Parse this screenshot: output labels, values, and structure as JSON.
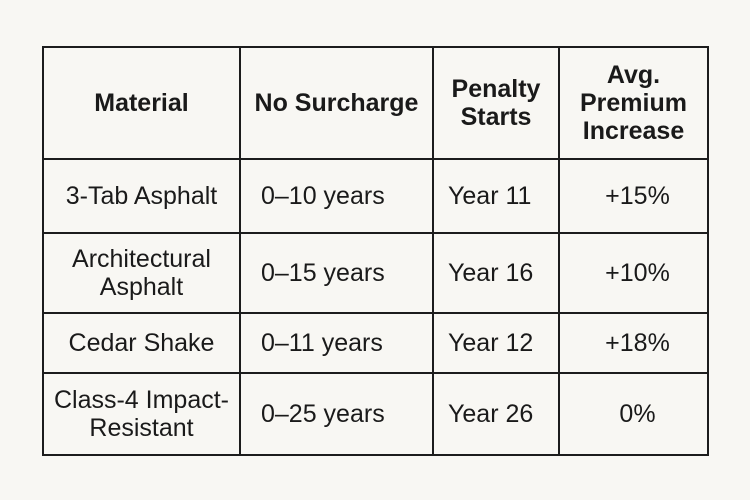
{
  "table": {
    "headers": {
      "material": "Material",
      "no_surcharge": "No Surcharge",
      "penalty_starts_line1": "Penalty",
      "penalty_starts_line2": "Starts",
      "premium_line1": "Avg.",
      "premium_line2": "Premium",
      "premium_line3": "Increase"
    },
    "rows": [
      {
        "material_line1": "3-Tab Asphalt",
        "material_line2": "",
        "no_surcharge": "0–10 years",
        "penalty_starts": "Year 11",
        "premium_increase": "+15%"
      },
      {
        "material_line1": "Architectural",
        "material_line2": "Asphalt",
        "no_surcharge": "0–15 years",
        "penalty_starts": "Year 16",
        "premium_increase": "+10%"
      },
      {
        "material_line1": "Cedar Shake",
        "material_line2": "",
        "no_surcharge": "0–11 years",
        "penalty_starts": "Year 12",
        "premium_increase": "+18%"
      },
      {
        "material_line1": "Class-4 Impact-",
        "material_line2": "Resistant",
        "no_surcharge": "0–25 years",
        "penalty_starts": "Year 26",
        "premium_increase": "0%"
      }
    ]
  }
}
